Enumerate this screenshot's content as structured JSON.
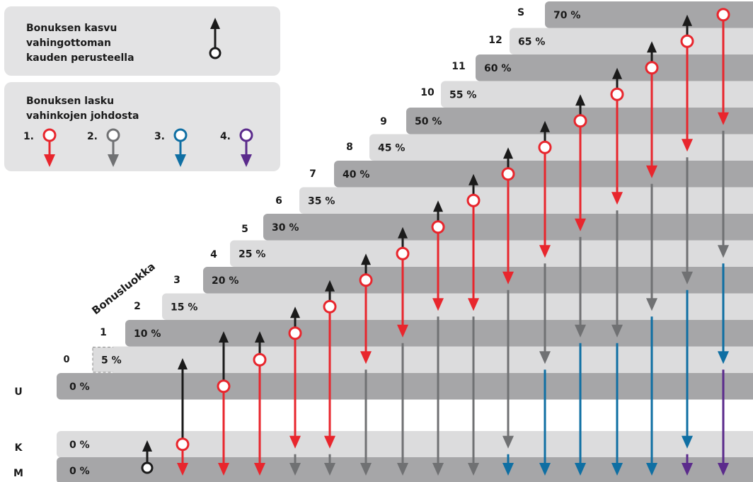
{
  "legend": {
    "growth_lines": [
      "Bonuksen kasvu",
      "vahingottoman",
      "kauden perusteella"
    ],
    "drop_lines": [
      "Bonuksen lasku",
      "vahinkojen johdosta"
    ],
    "drop_items": [
      {
        "label": "1.",
        "color": "#e8262d"
      },
      {
        "label": "2.",
        "color": "#707173"
      },
      {
        "label": "3.",
        "color": "#0f6fa3"
      },
      {
        "label": "4.",
        "color": "#5b2b8c"
      }
    ]
  },
  "axis_label": "Bonusluokka",
  "colors": {
    "dark_row": "#a6a6a8",
    "light_row": "#dcdcdd",
    "legend_box": "#e3e3e4",
    "growth": "#1a1a1a",
    "drop1": "#e8262d",
    "drop2": "#707173",
    "drop3": "#0f6fa3",
    "drop4": "#5b2b8c"
  },
  "classes": [
    {
      "cls": "S",
      "pct": "70 %"
    },
    {
      "cls": "12",
      "pct": "65 %"
    },
    {
      "cls": "11",
      "pct": "60 %"
    },
    {
      "cls": "10",
      "pct": "55 %"
    },
    {
      "cls": "9",
      "pct": "50 %"
    },
    {
      "cls": "8",
      "pct": "45 %"
    },
    {
      "cls": "7",
      "pct": "40 %"
    },
    {
      "cls": "6",
      "pct": "35 %"
    },
    {
      "cls": "5",
      "pct": "30 %"
    },
    {
      "cls": "4",
      "pct": "25 %"
    },
    {
      "cls": "3",
      "pct": "20 %"
    },
    {
      "cls": "2",
      "pct": "15 %"
    },
    {
      "cls": "1",
      "pct": "10 %"
    },
    {
      "cls": "0",
      "pct": "5 %"
    },
    {
      "cls": "U",
      "pct": "0 %"
    },
    {
      "cls": "K",
      "pct": "0 %"
    },
    {
      "cls": "M",
      "pct": "0 %"
    }
  ]
}
